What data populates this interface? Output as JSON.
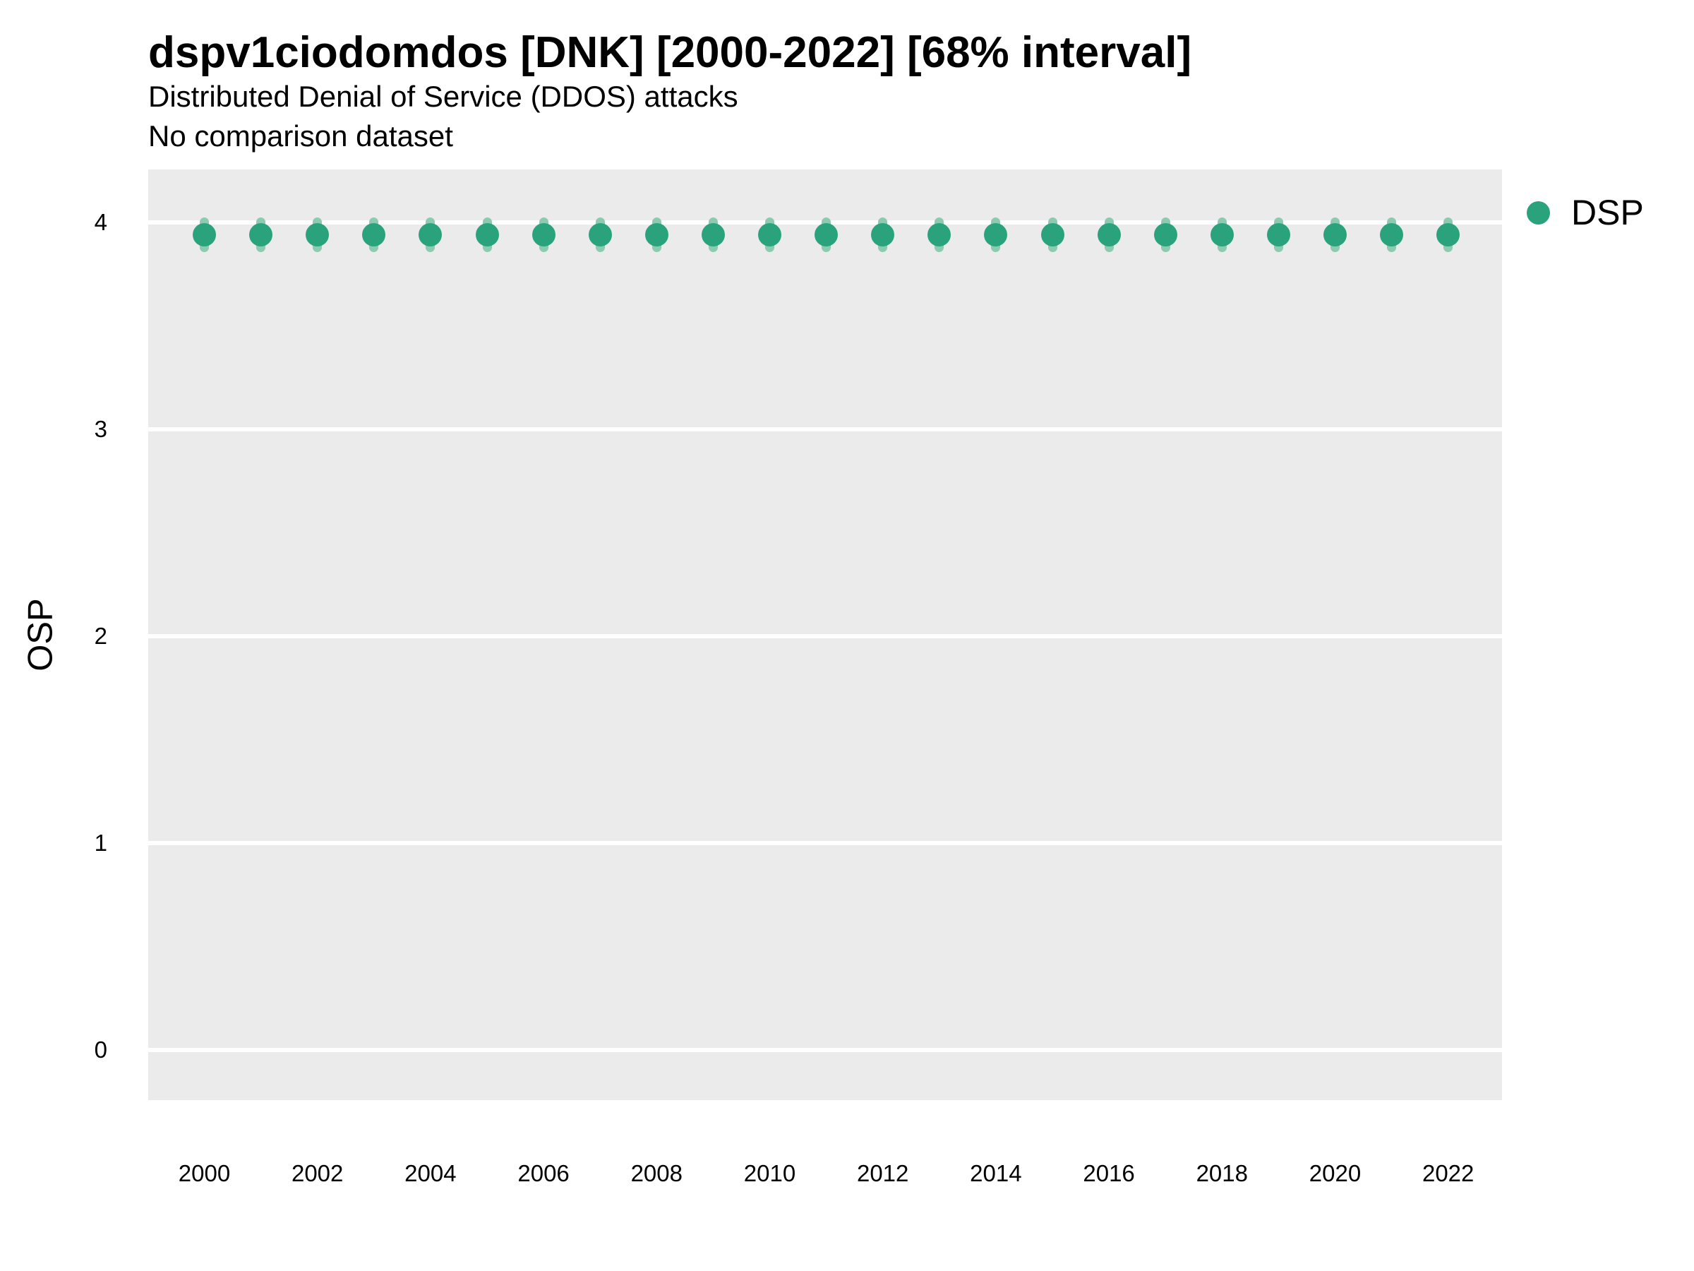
{
  "chart_data": {
    "type": "scatter",
    "subtype": "pointrange",
    "title": "dspv1ciodomdos [DNK] [2000-2022] [68% interval]",
    "subtitle": "Distributed Denial of Service (DDOS) attacks",
    "note": "No comparison dataset",
    "xlabel": "",
    "ylabel": "OSP",
    "interval_level": "68%",
    "x": [
      2000,
      2001,
      2002,
      2003,
      2004,
      2005,
      2006,
      2007,
      2008,
      2009,
      2010,
      2011,
      2012,
      2013,
      2014,
      2015,
      2016,
      2017,
      2018,
      2019,
      2020,
      2021,
      2022
    ],
    "series": [
      {
        "name": "DSP",
        "values": [
          3.94,
          3.94,
          3.94,
          3.94,
          3.94,
          3.94,
          3.94,
          3.94,
          3.94,
          3.94,
          3.94,
          3.94,
          3.94,
          3.94,
          3.94,
          3.94,
          3.94,
          3.94,
          3.94,
          3.94,
          3.94,
          3.94,
          3.94
        ],
        "interval_low": [
          3.88,
          3.88,
          3.88,
          3.88,
          3.88,
          3.88,
          3.88,
          3.88,
          3.88,
          3.88,
          3.88,
          3.88,
          3.88,
          3.88,
          3.88,
          3.88,
          3.88,
          3.88,
          3.88,
          3.88,
          3.88,
          3.88,
          3.88
        ],
        "interval_high": [
          4.0,
          4.0,
          4.0,
          4.0,
          4.0,
          4.0,
          4.0,
          4.0,
          4.0,
          4.0,
          4.0,
          4.0,
          4.0,
          4.0,
          4.0,
          4.0,
          4.0,
          4.0,
          4.0,
          4.0,
          4.0,
          4.0,
          4.0
        ]
      }
    ],
    "ylim": [
      0,
      4
    ],
    "yticks": [
      "4",
      "3",
      "2",
      "1",
      "0"
    ],
    "ytick_values": [
      4,
      3,
      2,
      1,
      0
    ],
    "xticks": [
      "2000",
      "2002",
      "2004",
      "2006",
      "2008",
      "2010",
      "2012",
      "2014",
      "2016",
      "2018",
      "2020",
      "2022"
    ],
    "xtick_values": [
      2000,
      2002,
      2004,
      2006,
      2008,
      2010,
      2012,
      2014,
      2016,
      2018,
      2020,
      2022
    ],
    "grid": "horizontal-major-only",
    "legend": {
      "position": "right",
      "entries": [
        {
          "label": "DSP",
          "marker": "circle",
          "color": "#2AA37D"
        }
      ]
    },
    "colors": {
      "point": "#2AA37D",
      "interval": "#8CCBB0",
      "panel_background": "#EBEBEB",
      "gridline": "#FFFFFF",
      "text": "#000000"
    }
  }
}
